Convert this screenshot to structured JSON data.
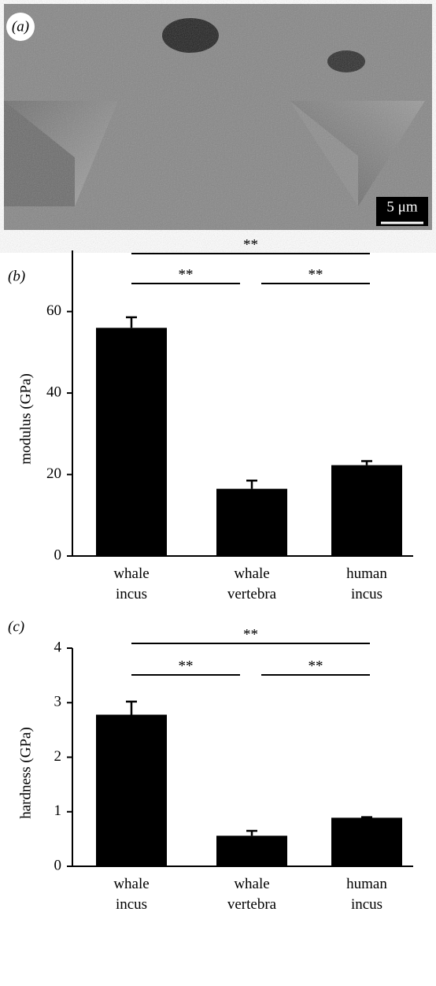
{
  "panel_a": {
    "label": "(a)",
    "scale_bar": "5 μm"
  },
  "chart_data": [
    {
      "type": "bar",
      "panel_label": "(b)",
      "ylabel": "modulus (GPa)",
      "categories": [
        "whale\nincus",
        "whale\nvertebra",
        "human\nincus"
      ],
      "values": [
        56,
        16.5,
        22.3
      ],
      "errors": [
        2.6,
        2,
        1
      ],
      "color": "#000000",
      "ylim": [
        0,
        75
      ],
      "yticks": [
        0,
        20,
        40,
        60
      ],
      "annotations": [
        {
          "text": "**",
          "from": 0,
          "to": 2
        },
        {
          "text": "**",
          "from": 0,
          "to": 1
        },
        {
          "text": "**",
          "from": 1,
          "to": 2
        }
      ]
    },
    {
      "type": "bar",
      "panel_label": "(c)",
      "ylabel": "hardness (GPa)",
      "categories": [
        "whale\nincus",
        "whale\nvertebra",
        "human\nincus"
      ],
      "values": [
        2.78,
        0.56,
        0.89
      ],
      "errors": [
        0.24,
        0.09,
        0.01
      ],
      "color": "#000000",
      "ylim": [
        0,
        4
      ],
      "yticks": [
        0,
        1,
        2,
        3,
        4
      ],
      "annotations": [
        {
          "text": "**",
          "from": 0,
          "to": 2
        },
        {
          "text": "**",
          "from": 0,
          "to": 1
        },
        {
          "text": "**",
          "from": 1,
          "to": 2
        }
      ]
    }
  ]
}
